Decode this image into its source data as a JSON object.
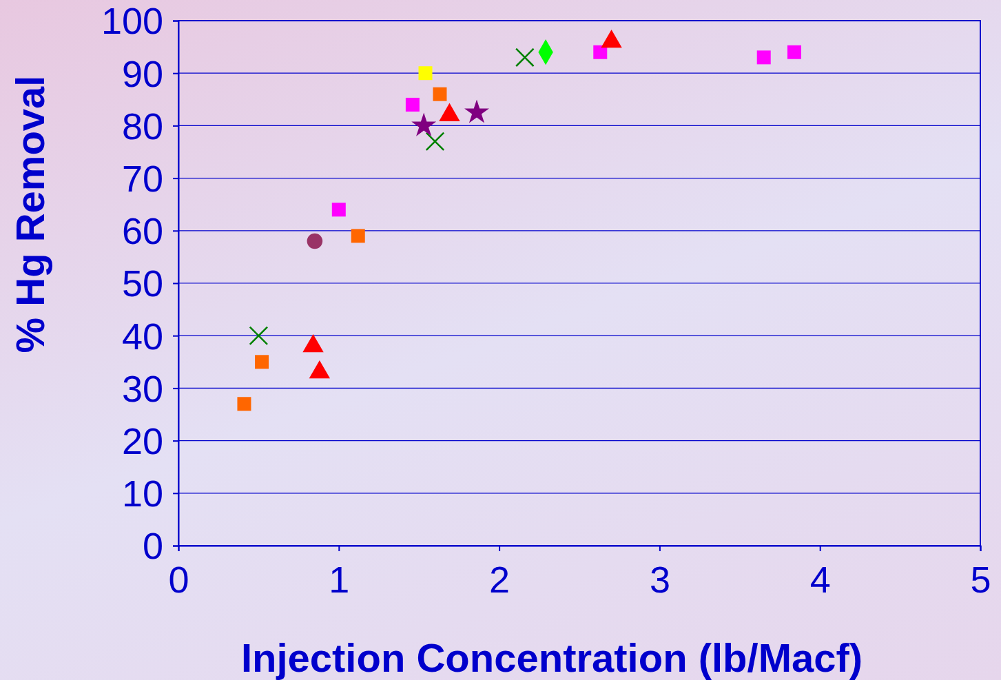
{
  "chart_data": {
    "type": "scatter",
    "xlabel": "Injection Concentration (lb/Macf)",
    "ylabel": "% Hg Removal",
    "xlim": [
      0,
      5
    ],
    "xticks": [
      0,
      1,
      2,
      3,
      4,
      5
    ],
    "ylim": [
      0,
      100
    ],
    "yticks": [
      0,
      10,
      20,
      30,
      40,
      50,
      60,
      70,
      80,
      90,
      100
    ],
    "grid": "y",
    "series": [
      {
        "color": "#ff00ff",
        "marker": "square",
        "x": [
          1.0,
          1.46,
          2.63,
          3.65,
          3.84
        ],
        "values": [
          64,
          84,
          94,
          93,
          94
        ]
      },
      {
        "color": "#ff6600",
        "marker": "square",
        "x": [
          0.41,
          0.52,
          1.12,
          1.63
        ],
        "values": [
          27,
          35,
          59,
          86
        ]
      },
      {
        "color": "#ff0000",
        "marker": "triangle",
        "x": [
          0.84,
          0.88,
          1.69,
          2.7
        ],
        "values": [
          38,
          33,
          82,
          96
        ]
      },
      {
        "color": "#008000",
        "marker": "cross",
        "x": [
          0.5,
          1.6,
          2.16
        ],
        "values": [
          40,
          77,
          93
        ]
      },
      {
        "color": "#800080",
        "marker": "star",
        "x": [
          1.53,
          1.86
        ],
        "values": [
          80,
          82.5
        ]
      },
      {
        "color": "#ffff00",
        "marker": "square",
        "x": [
          1.54
        ],
        "values": [
          90
        ]
      },
      {
        "color": "#00ff00",
        "marker": "diamond",
        "x": [
          2.29
        ],
        "values": [
          94
        ]
      },
      {
        "color": "#993366",
        "marker": "circle",
        "x": [
          0.85
        ],
        "values": [
          58
        ]
      }
    ]
  }
}
